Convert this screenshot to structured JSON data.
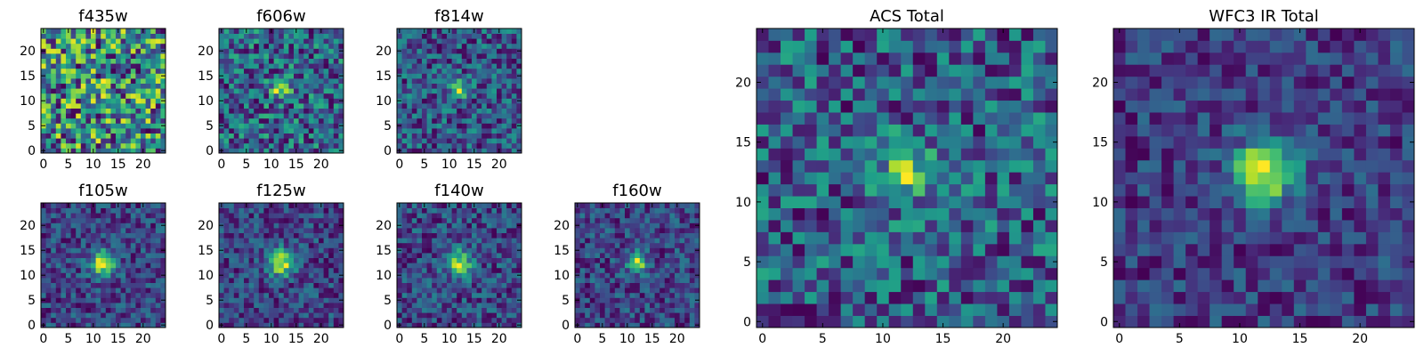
{
  "chart_data": [
    {
      "type": "heatmap",
      "id": "f435w",
      "title": "f435w",
      "size": 25,
      "xticks": [
        0,
        5,
        10,
        15,
        20
      ],
      "yticks": [
        0,
        5,
        10,
        15,
        20
      ],
      "source": {
        "peak": 0.15,
        "noise": 0.85,
        "sigma": 1.4,
        "floor": 0.25,
        "seed": 11
      },
      "colormap": "viridis"
    },
    {
      "type": "heatmap",
      "id": "f606w",
      "title": "f606w",
      "size": 25,
      "xticks": [
        0,
        5,
        10,
        15,
        20
      ],
      "yticks": [
        0,
        5,
        10,
        15,
        20
      ],
      "source": {
        "peak": 0.55,
        "noise": 0.55,
        "sigma": 1.4,
        "floor": 0.3,
        "seed": 23
      },
      "colormap": "viridis"
    },
    {
      "type": "heatmap",
      "id": "f814w",
      "title": "f814w",
      "size": 25,
      "xticks": [
        0,
        5,
        10,
        15,
        20
      ],
      "yticks": [
        0,
        5,
        10,
        15,
        20
      ],
      "source": {
        "peak": 0.7,
        "noise": 0.6,
        "sigma": 1.3,
        "floor": 0.2,
        "seed": 37
      },
      "colormap": "viridis"
    },
    {
      "type": "heatmap",
      "id": "f105w",
      "title": "f105w",
      "size": 25,
      "xticks": [
        0,
        5,
        10,
        15,
        20
      ],
      "yticks": [
        0,
        5,
        10,
        15,
        20
      ],
      "source": {
        "peak": 0.75,
        "noise": 0.35,
        "sigma": 1.8,
        "floor": 0.25,
        "seed": 41
      },
      "colormap": "viridis"
    },
    {
      "type": "heatmap",
      "id": "f125w",
      "title": "f125w",
      "size": 25,
      "xticks": [
        0,
        5,
        10,
        15,
        20
      ],
      "yticks": [
        0,
        5,
        10,
        15,
        20
      ],
      "source": {
        "peak": 0.75,
        "noise": 0.35,
        "sigma": 1.8,
        "floor": 0.3,
        "seed": 53
      },
      "colormap": "viridis"
    },
    {
      "type": "heatmap",
      "id": "f140w",
      "title": "f140w",
      "size": 25,
      "xticks": [
        0,
        5,
        10,
        15,
        20
      ],
      "yticks": [
        0,
        5,
        10,
        15,
        20
      ],
      "source": {
        "peak": 0.65,
        "noise": 0.4,
        "sigma": 1.9,
        "floor": 0.35,
        "seed": 67
      },
      "colormap": "viridis"
    },
    {
      "type": "heatmap",
      "id": "f160w",
      "title": "f160w",
      "size": 25,
      "xticks": [
        0,
        5,
        10,
        15,
        20
      ],
      "yticks": [
        0,
        5,
        10,
        15,
        20
      ],
      "source": {
        "peak": 0.8,
        "noise": 0.45,
        "sigma": 1.4,
        "floor": 0.2,
        "seed": 79
      },
      "colormap": "viridis"
    },
    {
      "type": "heatmap",
      "id": "acs-total",
      "title": "ACS Total",
      "size": 25,
      "xticks": [
        0,
        5,
        10,
        15,
        20
      ],
      "yticks": [
        0,
        5,
        10,
        15,
        20
      ],
      "source": {
        "peak": 0.55,
        "noise": 0.55,
        "sigma": 1.6,
        "floor": 0.45,
        "seed": 97
      },
      "colormap": "viridis"
    },
    {
      "type": "heatmap",
      "id": "wfc3-ir-total",
      "title": "WFC3 IR Total",
      "size": 25,
      "xticks": [
        0,
        5,
        10,
        15,
        20
      ],
      "yticks": [
        0,
        5,
        10,
        15,
        20
      ],
      "source": {
        "peak": 0.8,
        "noise": 0.3,
        "sigma": 1.8,
        "floor": 0.3,
        "seed": 113
      },
      "colormap": "viridis"
    }
  ]
}
